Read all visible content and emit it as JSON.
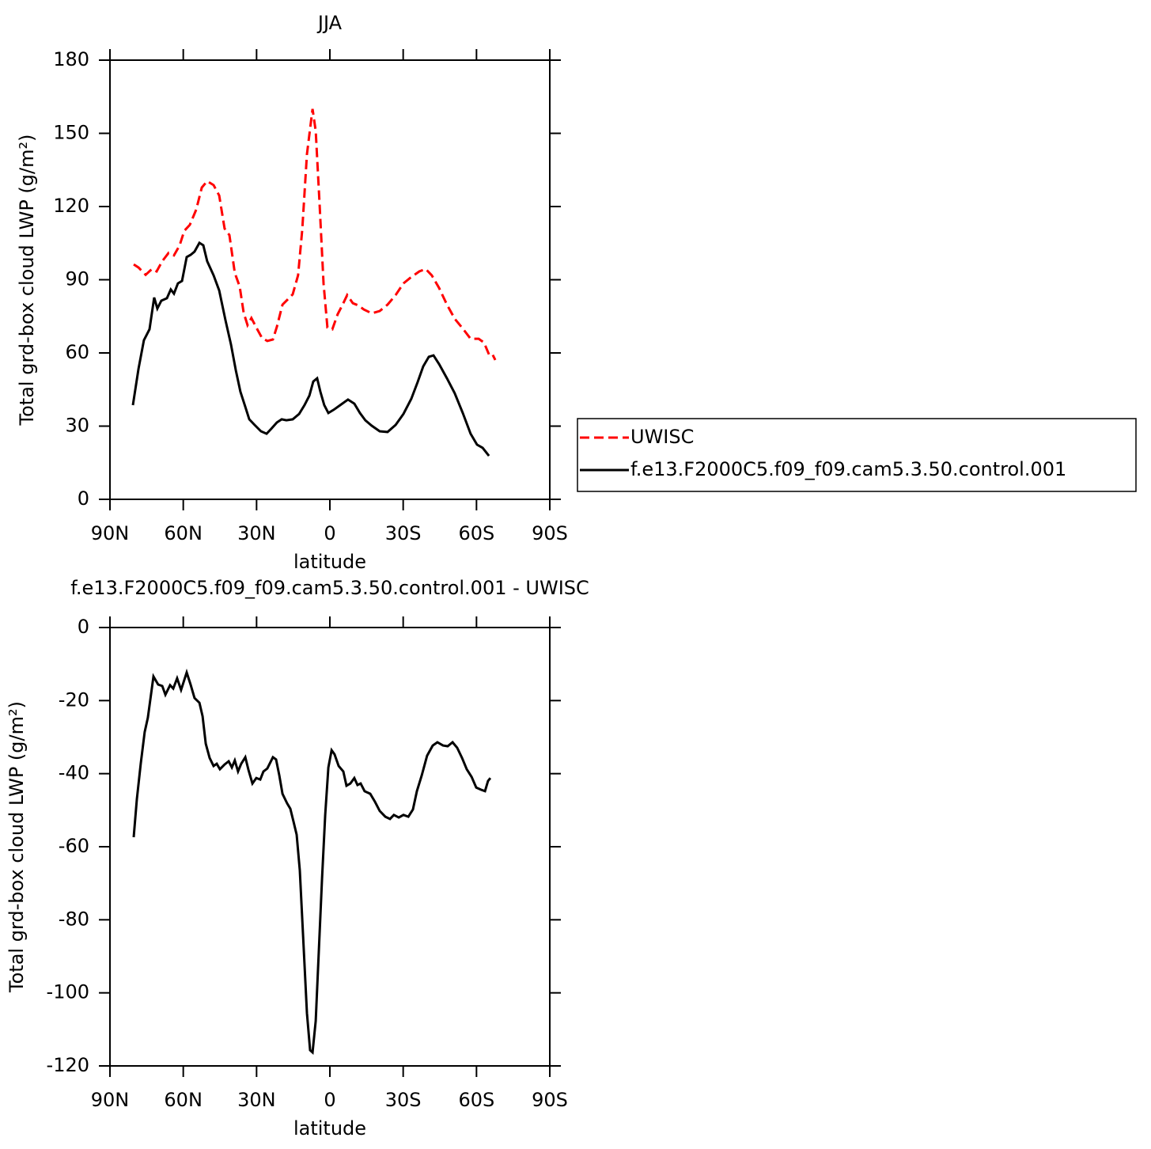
{
  "chart_data": [
    {
      "type": "line",
      "title": "JJA",
      "x_label": "latitude",
      "y_label": "Total grd-box cloud LWP (g/m²)",
      "xlim": [
        90,
        -90
      ],
      "xticks": [
        {
          "value": 90,
          "label": "90N"
        },
        {
          "value": 60,
          "label": "60N"
        },
        {
          "value": 30,
          "label": "30N"
        },
        0,
        {
          "value": -30,
          "label": "30S"
        },
        {
          "value": -60,
          "label": "60S"
        },
        {
          "value": -90,
          "label": "90S"
        }
      ],
      "ylim": [
        0,
        180
      ],
      "yticks": [
        0,
        30,
        60,
        90,
        120,
        150,
        180
      ],
      "legend": "right",
      "series": [
        {
          "name": "UWISC",
          "color": "#ff0000",
          "line_style": "dashed",
          "x": [
            80.3,
            78.3,
            75.4,
            72.8,
            70.9,
            68.6,
            66,
            63.8,
            61.5,
            59.6,
            57.3,
            54.7,
            52.4,
            50.2,
            47.6,
            45.3,
            43.1,
            41.1,
            38.9,
            36.9,
            35.3,
            33.7,
            32.1,
            30.1,
            27.8,
            25.6,
            23.3,
            21.7,
            19.4,
            17.2,
            15.2,
            13,
            11.3,
            9.4,
            7.1,
            5.8,
            4.2,
            2.6,
            1,
            -1,
            -3.2,
            -5.2,
            -7.1,
            -9.4,
            -11.6,
            -13.9,
            -17.2,
            -20.4,
            -23.6,
            -26.9,
            -30.1,
            -33.3,
            -36.6,
            -39.2,
            -41.7,
            -44.7,
            -47.9,
            -51.1,
            -54.4,
            -57.6,
            -60.9,
            -63.1,
            -65.1,
            -66.4,
            -67.7
          ],
          "values": [
            96.3,
            95,
            92,
            94.4,
            93.4,
            97.6,
            101,
            100,
            104,
            110,
            112.5,
            118.7,
            127.8,
            130.4,
            128.8,
            124.5,
            111,
            108.3,
            92.8,
            87.2,
            76.5,
            71.4,
            74.3,
            70.4,
            66.2,
            64.9,
            65.5,
            70.7,
            79.8,
            82,
            84,
            91.8,
            110.6,
            141.4,
            160,
            151,
            121,
            88.5,
            70.4,
            69.7,
            75.9,
            79.8,
            83.7,
            80.4,
            79.5,
            77.8,
            76.2,
            77.2,
            79.8,
            83.7,
            88.5,
            91.1,
            93.4,
            94.4,
            91.8,
            86.6,
            79.8,
            74,
            70,
            65.8,
            65.8,
            64.2,
            59.4,
            59.7,
            57.1
          ]
        },
        {
          "name": "f.e13.F2000C5.f09_f09.cam5.3.50.control.001",
          "color": "#000000",
          "line_style": "solid",
          "x": [
            80.6,
            78.3,
            76.1,
            73.8,
            71.9,
            70.6,
            69,
            66.7,
            65.1,
            63.8,
            62.2,
            60.5,
            58.6,
            57,
            55.4,
            53.4,
            51.8,
            50.2,
            47.6,
            45.3,
            42.7,
            40.5,
            38.5,
            36.6,
            34.6,
            33,
            30.8,
            28.2,
            25.9,
            24,
            21.7,
            19.7,
            17.8,
            15.2,
            12.6,
            10.4,
            8.4,
            6.8,
            5.2,
            3.9,
            2.3,
            0.6,
            -1.6,
            -4.2,
            -7.4,
            -10,
            -12.3,
            -14.5,
            -17.1,
            -20.4,
            -23.6,
            -26.9,
            -30.1,
            -33.3,
            -35.9,
            -38.2,
            -40.5,
            -42.4,
            -44.7,
            -47.9,
            -51.1,
            -54.4,
            -57.6,
            -60.2,
            -62.5,
            -65.1
          ],
          "values": [
            38.6,
            53.5,
            65.2,
            69.7,
            82.7,
            78.2,
            81.4,
            82.4,
            86,
            84.3,
            88.5,
            89.5,
            99.3,
            100.2,
            101.5,
            105.1,
            104.1,
            97.6,
            91.8,
            85.6,
            73.3,
            63.6,
            52.9,
            44.1,
            37.9,
            32.8,
            30.5,
            27.9,
            26.9,
            28.9,
            31.5,
            32.8,
            32.4,
            32.8,
            35,
            38.6,
            42.5,
            48.3,
            49.6,
            44.1,
            38.6,
            35.4,
            36.7,
            38.6,
            40.9,
            39.2,
            35.4,
            32.4,
            30.2,
            27.9,
            27.6,
            30.5,
            35,
            41.2,
            48,
            54.5,
            58.4,
            59,
            55.4,
            49.6,
            43.5,
            35.4,
            26.9,
            22.4,
            21.1,
            17.8
          ]
        }
      ]
    },
    {
      "type": "line",
      "title": "f.e13.F2000C5.f09_f09.cam5.3.50.control.001  -  UWISC",
      "x_label": "latitude",
      "y_label": "Total grd-box cloud LWP (g/m²)",
      "xlim": [
        90,
        -90
      ],
      "xticks": [
        {
          "value": 90,
          "label": "90N"
        },
        {
          "value": 60,
          "label": "60N"
        },
        {
          "value": 30,
          "label": "30N"
        },
        0,
        {
          "value": -30,
          "label": "30S"
        },
        {
          "value": -60,
          "label": "60S"
        },
        {
          "value": -90,
          "label": "90S"
        }
      ],
      "ylim": [
        -120,
        0
      ],
      "yticks": [
        -120,
        -100,
        -80,
        -60,
        -40,
        -20,
        0
      ],
      "color": "#000000",
      "x": [
        80.3,
        79,
        77.4,
        75.8,
        74.5,
        72.2,
        70.3,
        68.6,
        67.3,
        65.4,
        64.1,
        62.5,
        60.9,
        58.6,
        57,
        55.4,
        53.4,
        52.1,
        50.8,
        49.2,
        47.6,
        46.3,
        45,
        43.1,
        41.4,
        40.1,
        38.9,
        37.6,
        36.3,
        34.6,
        33.3,
        31.7,
        30.1,
        28.5,
        27.2,
        25.6,
        23.3,
        22,
        20.7,
        19.4,
        17.5,
        16.2,
        14.9,
        13.6,
        12.3,
        11,
        9.4,
        8.1,
        7.1,
        5.8,
        4.5,
        3.2,
        1.9,
        0.6,
        -0.7,
        -1.9,
        -3.6,
        -5.5,
        -6.8,
        -8.4,
        -10,
        -11.3,
        -12.6,
        -14.2,
        -16.5,
        -18.4,
        -20.4,
        -22.7,
        -24.6,
        -26.2,
        -28.2,
        -30.1,
        -32.1,
        -34,
        -35.6,
        -37.6,
        -39.8,
        -42.1,
        -44,
        -46.3,
        -48.2,
        -50.2,
        -52.1,
        -54.1,
        -56,
        -58,
        -59.9,
        -61.9,
        -63.5,
        -64.7,
        -65.7
      ],
      "values": [
        -57.4,
        -47,
        -37.3,
        -28.6,
        -24.7,
        -13.4,
        -15.6,
        -16,
        -18.4,
        -15.8,
        -16.7,
        -13.9,
        -17.1,
        -12.3,
        -15.6,
        -19.3,
        -20.6,
        -24.3,
        -31.8,
        -35.7,
        -37.9,
        -37.3,
        -38.8,
        -37.5,
        -36.6,
        -38.3,
        -36.4,
        -39.4,
        -37.3,
        -35.5,
        -39,
        -42.7,
        -41.2,
        -41.6,
        -39.4,
        -38.6,
        -35.5,
        -36.1,
        -40.5,
        -45.5,
        -48.1,
        -49.6,
        -53.1,
        -56.7,
        -66.5,
        -83.8,
        -105.5,
        -115.7,
        -116.3,
        -107.7,
        -88.2,
        -68.7,
        -51.3,
        -38.3,
        -33.6,
        -34.7,
        -37.9,
        -39.4,
        -43.3,
        -42.7,
        -41.2,
        -43.1,
        -42.7,
        -44.8,
        -45.5,
        -47.6,
        -50.2,
        -51.8,
        -52.4,
        -51.3,
        -52,
        -51.3,
        -51.8,
        -49.8,
        -44.8,
        -40.5,
        -35.1,
        -32.3,
        -31.4,
        -32.3,
        -32.5,
        -31.4,
        -32.9,
        -35.7,
        -38.8,
        -40.9,
        -43.8,
        -44.4,
        -44.8,
        -42,
        -41.2
      ]
    }
  ]
}
